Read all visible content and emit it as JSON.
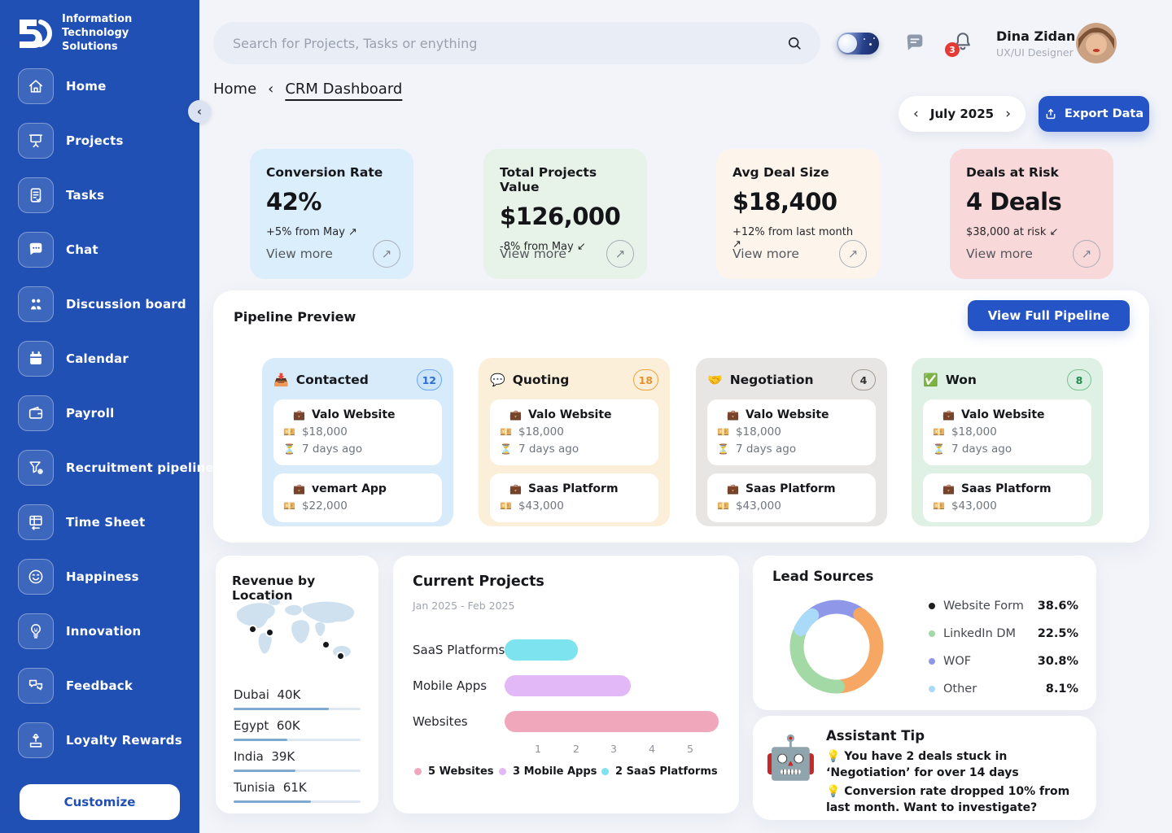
{
  "sidebar": {
    "logo_text": "5D",
    "brand": "Information Technology Solutions",
    "items": [
      {
        "label": "Home",
        "icon": "home-icon"
      },
      {
        "label": "Projects",
        "icon": "projects-icon"
      },
      {
        "label": "Tasks",
        "icon": "tasks-icon"
      },
      {
        "label": "Chat",
        "icon": "chat-icon"
      },
      {
        "label": "Discussion board",
        "icon": "discussion-board-icon"
      },
      {
        "label": "Calendar",
        "icon": "calendar-icon"
      },
      {
        "label": "Payroll",
        "icon": "payroll-icon"
      },
      {
        "label": "Recruitment pipeline",
        "icon": "recruitment-pipeline-icon"
      },
      {
        "label": "Time Sheet",
        "icon": "time-sheet-icon"
      },
      {
        "label": "Happiness",
        "icon": "happiness-icon"
      },
      {
        "label": "Innovation",
        "icon": "innovation-icon"
      },
      {
        "label": "Feedback",
        "icon": "feedback-icon"
      },
      {
        "label": "Loyalty Rewards",
        "icon": "loyalty-rewards-icon"
      }
    ],
    "customize_label": "Customize"
  },
  "topbar": {
    "search_placeholder": "Search for Projects, Tasks or enything",
    "notification_count": "3",
    "user": {
      "name": "Dina Zidan",
      "role": "UX/UI Designer"
    }
  },
  "breadcrumb": {
    "home": "Home",
    "separator": "‹",
    "current": "CRM Dashboard"
  },
  "controls": {
    "prev": "‹",
    "month": "July 2025",
    "next": "›",
    "export_label": "Export Data"
  },
  "stat_cards": [
    {
      "title": "Conversion Rate",
      "value": "42%",
      "delta": "+5% from May",
      "trend_icon": "↗",
      "view_more": "View more",
      "bg": "#dbeefb"
    },
    {
      "title": "Total Projects Value",
      "value": "$126,000",
      "delta": "-8% from May",
      "trend_icon": "↙",
      "view_more": "View more",
      "bg": "#e7f2e8"
    },
    {
      "title": "Avg Deal Size",
      "value": "$18,400",
      "delta": "+12% from last month",
      "trend_icon": "↗",
      "view_more": "View more",
      "bg": "#fdf4ec"
    },
    {
      "title": "Deals at Risk",
      "value": "4 Deals",
      "delta": "$38,000 at risk",
      "trend_icon": "↙",
      "view_more": "View more",
      "bg": "#f8d8d8"
    }
  ],
  "pipeline": {
    "title": "Pipeline Preview",
    "button": "View Full Pipeline",
    "deal_icons": {
      "name": "💼",
      "value": "💴",
      "age": "⏳"
    },
    "columns": [
      {
        "icon": "📥",
        "name": "Contacted",
        "count": "12",
        "bg": "#d7ebfa",
        "badge": {
          "bg": "#cce5fb",
          "border": "#6ba7f5",
          "color": "#2e6cd6"
        },
        "deals": [
          {
            "name": "Valo Website",
            "value": "$18,000",
            "age": "7 days ago"
          },
          {
            "name": "vemart App",
            "value": "$22,000"
          }
        ]
      },
      {
        "icon": "💬",
        "name": "Quoting",
        "count": "18",
        "bg": "#fcefda",
        "badge": {
          "bg": "transparent",
          "border": "#eda53f",
          "color": "#e2932d"
        },
        "deals": [
          {
            "name": "Valo Website",
            "value": "$18,000",
            "age": "7 days ago"
          },
          {
            "name": "Saas Platform",
            "value": "$43,000"
          }
        ]
      },
      {
        "icon": "🤝",
        "name": "Negotiation",
        "count": "4",
        "bg": "#e8e6e4",
        "badge": {
          "bg": "transparent",
          "border": "#a09a92",
          "color": "#33312e"
        },
        "deals": [
          {
            "name": "Valo Website",
            "value": "$18,000",
            "age": "7 days ago"
          },
          {
            "name": "Saas Platform",
            "value": "$43,000"
          }
        ]
      },
      {
        "icon": "✅",
        "name": "Won",
        "count": "8",
        "bg": "#def1e4",
        "badge": {
          "bg": "#d9efe1",
          "border": "#79c493",
          "color": "#1f8b4d"
        },
        "deals": [
          {
            "name": "Valo Website",
            "value": "$18,000",
            "age": "7 days ago"
          },
          {
            "name": "Saas Platform",
            "value": "$43,000"
          }
        ]
      }
    ]
  },
  "revenue": {
    "title": "Revenue by Location",
    "locations": [
      {
        "name": "Dubai",
        "value": "40K",
        "pct": 75
      },
      {
        "name": "Egypt",
        "value": "60K",
        "pct": 42
      },
      {
        "name": "India",
        "value": "39K",
        "pct": 49
      },
      {
        "name": "Tunisia",
        "value": "61K",
        "pct": 61
      }
    ]
  },
  "projects_chart": {
    "title": "Current Projects",
    "subtitle": "Jan 2025 - Feb 2025",
    "rows": [
      {
        "label": "SaaS Platforms",
        "units": 2.05,
        "color": "#7de3ef"
      },
      {
        "label": "Mobile Apps",
        "units": 3.45,
        "color": "#e2b8f6"
      },
      {
        "label": "Websites",
        "units": 5.75,
        "color": "#f0a7bc"
      }
    ],
    "ticks": [
      "1",
      "2",
      "3",
      "4",
      "5"
    ],
    "legend": [
      {
        "label": "5 Websites",
        "color": "#f0a7bc"
      },
      {
        "label": "3 Mobile Apps",
        "color": "#e2b8f6"
      },
      {
        "label": "2 SaaS Platforms",
        "color": "#7de3ef"
      }
    ]
  },
  "lead_sources": {
    "title": "Lead Sources",
    "items": [
      {
        "label": "Website Form",
        "value": "38.6%",
        "dot": "#1e1e20"
      },
      {
        "label": "LinkedIn DM",
        "value": "22.5%",
        "dot": "#a3d9a4"
      },
      {
        "label": "WOF",
        "value": "30.8%",
        "dot": "#8e97e8"
      },
      {
        "label": "Other",
        "value": "8.1%",
        "dot": "#a9daf8"
      }
    ],
    "segments": [
      {
        "color": "#8e97e8",
        "start": -48,
        "sweep": 78
      },
      {
        "color": "#f5a763",
        "start": 36,
        "sweep": 136
      },
      {
        "color": "#a3d9a4",
        "start": 178,
        "sweep": 112
      },
      {
        "color": "#a9daf8",
        "start": 296,
        "sweep": 26
      }
    ]
  },
  "assistant": {
    "icon": "🤖",
    "title": "Assistant Tip",
    "tips": [
      "💡 You have 2 deals stuck in ‘Negotiation’ for over 14 days",
      "💡 Conversion rate dropped 10% from last month. Want to investigate?"
    ]
  },
  "chart_data": [
    {
      "type": "bar",
      "orientation": "horizontal",
      "title": "Current Projects",
      "subtitle": "Jan 2025 - Feb 2025",
      "categories": [
        "SaaS Platforms",
        "Mobile Apps",
        "Websites"
      ],
      "values": [
        2,
        3,
        5
      ],
      "bar_end_axis_units": [
        2.05,
        3.45,
        5.75
      ],
      "xlim": [
        0,
        5
      ],
      "x_ticks": [
        1,
        2,
        3,
        4,
        5
      ],
      "colors": [
        "#7de3ef",
        "#e2b8f6",
        "#f0a7bc"
      ],
      "legend": [
        "5 Websites",
        "3 Mobile Apps",
        "2 SaaS Platforms"
      ],
      "legend_position": "bottom",
      "grid": false
    },
    {
      "type": "pie",
      "title": "Lead Sources",
      "labels": [
        "Website Form",
        "LinkedIn DM",
        "WOF",
        "Other"
      ],
      "values": [
        38.6,
        22.5,
        30.8,
        8.1
      ],
      "colors": [
        "#f5a763",
        "#a3d9a4",
        "#8e97e8",
        "#a9daf8"
      ],
      "legend_position": "right",
      "donut": true
    },
    {
      "type": "bar",
      "title": "Revenue by Location",
      "categories": [
        "Dubai",
        "Egypt",
        "India",
        "Tunisia"
      ],
      "values": [
        40000,
        60000,
        39000,
        61000
      ],
      "value_labels": [
        "40K",
        "60K",
        "39K",
        "61K"
      ],
      "bar_fill_pct": [
        75,
        42,
        49,
        61
      ]
    }
  ]
}
